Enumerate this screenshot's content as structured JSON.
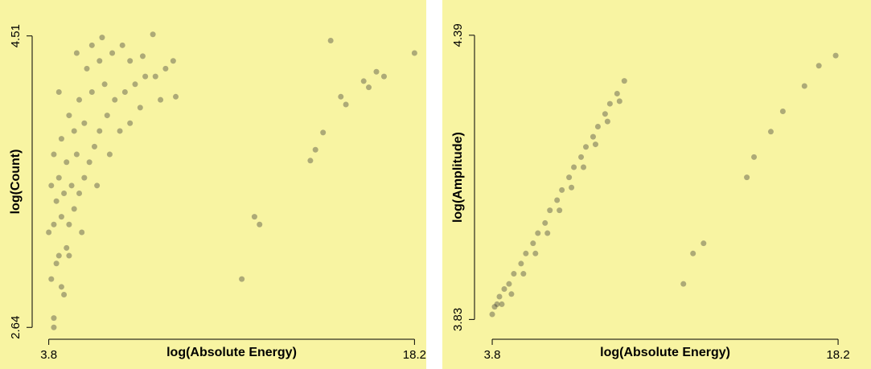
{
  "chart_data": [
    {
      "type": "scatter",
      "xlabel": "log(Absolute Energy)",
      "ylabel": "log(Count)",
      "xlim": [
        3.4,
        18.6
      ],
      "ylim": [
        2.6,
        4.56
      ],
      "xticks": [
        3.8,
        18.2
      ],
      "yticks": [
        2.64,
        4.51
      ],
      "color": "#333333",
      "x": [
        4.0,
        3.9,
        4.1,
        4.3,
        4.2,
        4.5,
        3.8,
        4.0,
        4.3,
        4.6,
        4.8,
        4.1,
        4.4,
        4.7,
        5.0,
        5.2,
        4.2,
        4.5,
        4.9,
        5.4,
        5.6,
        4.0,
        4.3,
        4.8,
        5.2,
        5.8,
        6.1,
        4.6,
        5.0,
        5.5,
        6.0,
        6.4,
        6.8,
        7.2,
        7.6,
        8.0,
        8.4,
        5.3,
        5.8,
        6.3,
        4.9,
        5.5,
        6.7,
        7.0,
        7.5,
        8.7,
        4.2,
        3.9,
        5.7,
        6.2,
        6.6,
        7.0,
        7.4,
        8.2,
        8.8,
        4.0,
        4.4,
        5.9,
        4.6,
        5.1,
        7.9,
        11.4,
        11.9,
        12.1,
        14.1,
        14.3,
        14.6,
        14.9,
        15.3,
        15.5,
        16.2,
        16.4,
        16.7,
        17.0,
        18.2
      ],
      "y": [
        2.7,
        2.95,
        3.05,
        2.9,
        3.1,
        3.15,
        3.25,
        3.3,
        3.35,
        3.3,
        3.4,
        3.45,
        3.5,
        3.55,
        3.5,
        3.6,
        3.6,
        3.7,
        3.75,
        3.7,
        3.8,
        3.75,
        3.85,
        3.9,
        3.95,
        3.9,
        4.0,
        4.0,
        4.1,
        4.15,
        4.2,
        4.1,
        4.15,
        4.2,
        4.25,
        4.25,
        4.3,
        4.3,
        4.35,
        4.4,
        4.4,
        4.45,
        4.45,
        4.35,
        4.38,
        4.35,
        4.15,
        3.55,
        3.55,
        3.75,
        3.9,
        3.95,
        4.05,
        4.1,
        4.12,
        2.64,
        2.85,
        4.5,
        3.1,
        3.25,
        4.52,
        2.95,
        3.35,
        3.3,
        3.71,
        3.78,
        3.89,
        4.48,
        4.12,
        4.07,
        4.22,
        4.18,
        4.28,
        4.25,
        4.4
      ]
    },
    {
      "type": "scatter",
      "xlabel": "log(Absolute Energy)",
      "ylabel": "log(Amplitude)",
      "xlim": [
        3.33,
        18.8
      ],
      "ylim": [
        3.81,
        4.404
      ],
      "xticks": [
        3.8,
        18.2
      ],
      "yticks": [
        3.83,
        4.39
      ],
      "color": "#333333",
      "x": [
        3.8,
        3.9,
        4.0,
        4.1,
        4.2,
        4.3,
        4.5,
        4.6,
        4.7,
        5.0,
        5.1,
        5.2,
        5.5,
        5.6,
        5.7,
        6.0,
        6.1,
        6.2,
        6.5,
        6.6,
        6.7,
        7.0,
        7.1,
        7.2,
        7.5,
        7.6,
        7.7,
        8.0,
        8.1,
        8.2,
        8.5,
        8.6,
        8.7,
        9.0,
        9.1,
        9.3,
        11.76,
        12.16,
        12.6,
        14.4,
        14.7,
        15.4,
        15.9,
        16.8,
        17.4,
        18.1
      ],
      "y": [
        3.84,
        3.855,
        3.86,
        3.875,
        3.86,
        3.89,
        3.9,
        3.88,
        3.92,
        3.94,
        3.92,
        3.96,
        3.98,
        3.96,
        4.0,
        4.02,
        4.0,
        4.045,
        4.065,
        4.045,
        4.085,
        4.11,
        4.09,
        4.13,
        4.15,
        4.13,
        4.17,
        4.19,
        4.175,
        4.21,
        4.235,
        4.22,
        4.255,
        4.275,
        4.26,
        4.3,
        3.9,
        3.96,
        3.98,
        4.11,
        4.15,
        4.2,
        4.24,
        4.29,
        4.33,
        4.35
      ]
    }
  ]
}
